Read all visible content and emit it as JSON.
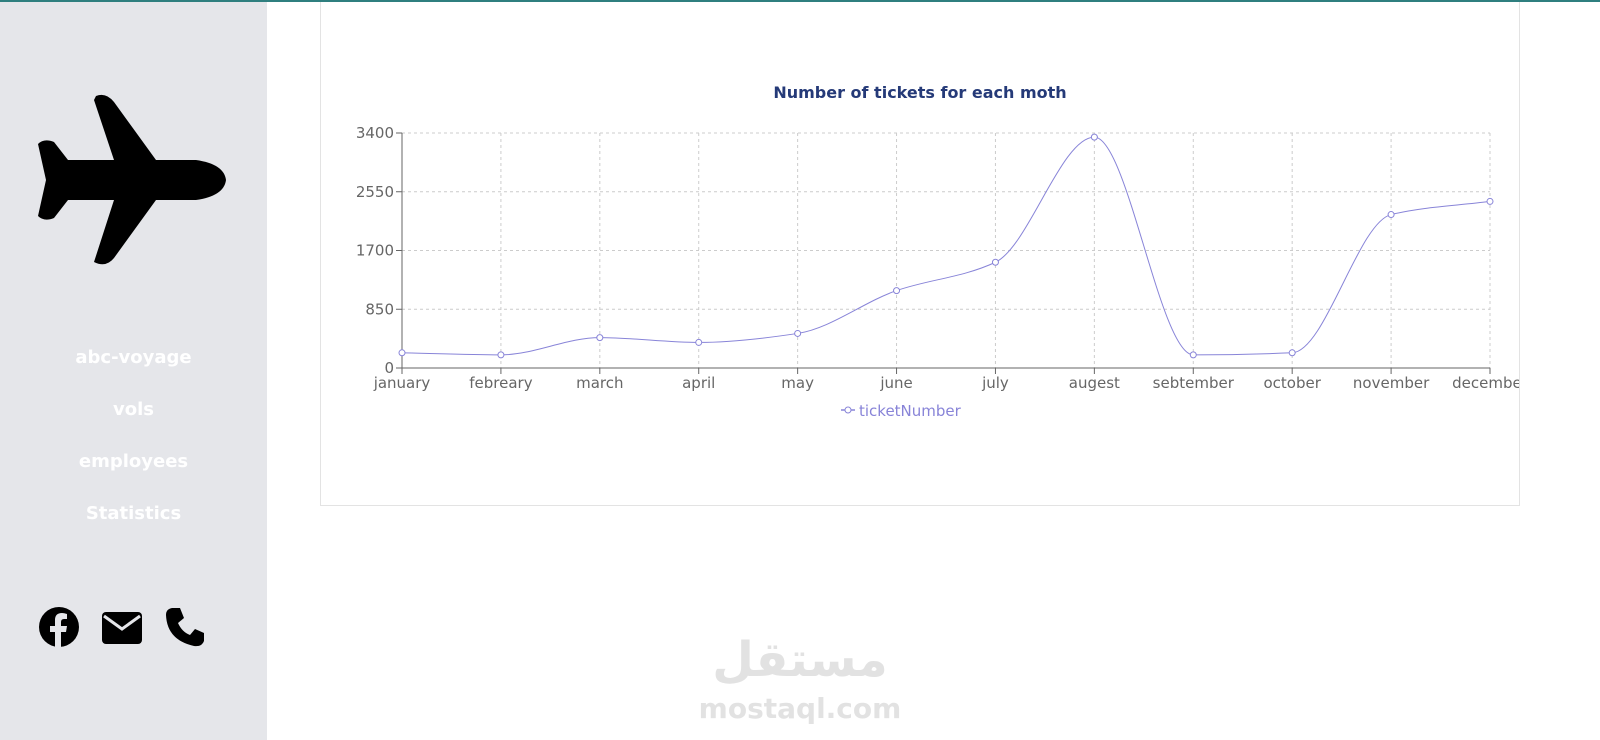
{
  "sidebar": {
    "nav": [
      "abc-voyage",
      "vols",
      "employees",
      "Statistics"
    ]
  },
  "watermark": {
    "arabic": "مستقل",
    "latin": "mostaql.com"
  },
  "chart_data": {
    "type": "line",
    "title": "Number of tickets for each moth",
    "categories": [
      "january",
      "febreary",
      "march",
      "april",
      "may",
      "june",
      "july",
      "augest",
      "sebtember",
      "october",
      "november",
      "december"
    ],
    "series": [
      {
        "name": "ticketNumber",
        "color": "#8884d8",
        "values": [
          220,
          190,
          440,
          370,
          500,
          1120,
          1530,
          3340,
          190,
          220,
          2220,
          2410
        ]
      }
    ],
    "ylim": [
      0,
      3400
    ],
    "yticks": [
      0,
      850,
      1700,
      2550,
      3400
    ],
    "grid": true,
    "legend": "bottom"
  }
}
